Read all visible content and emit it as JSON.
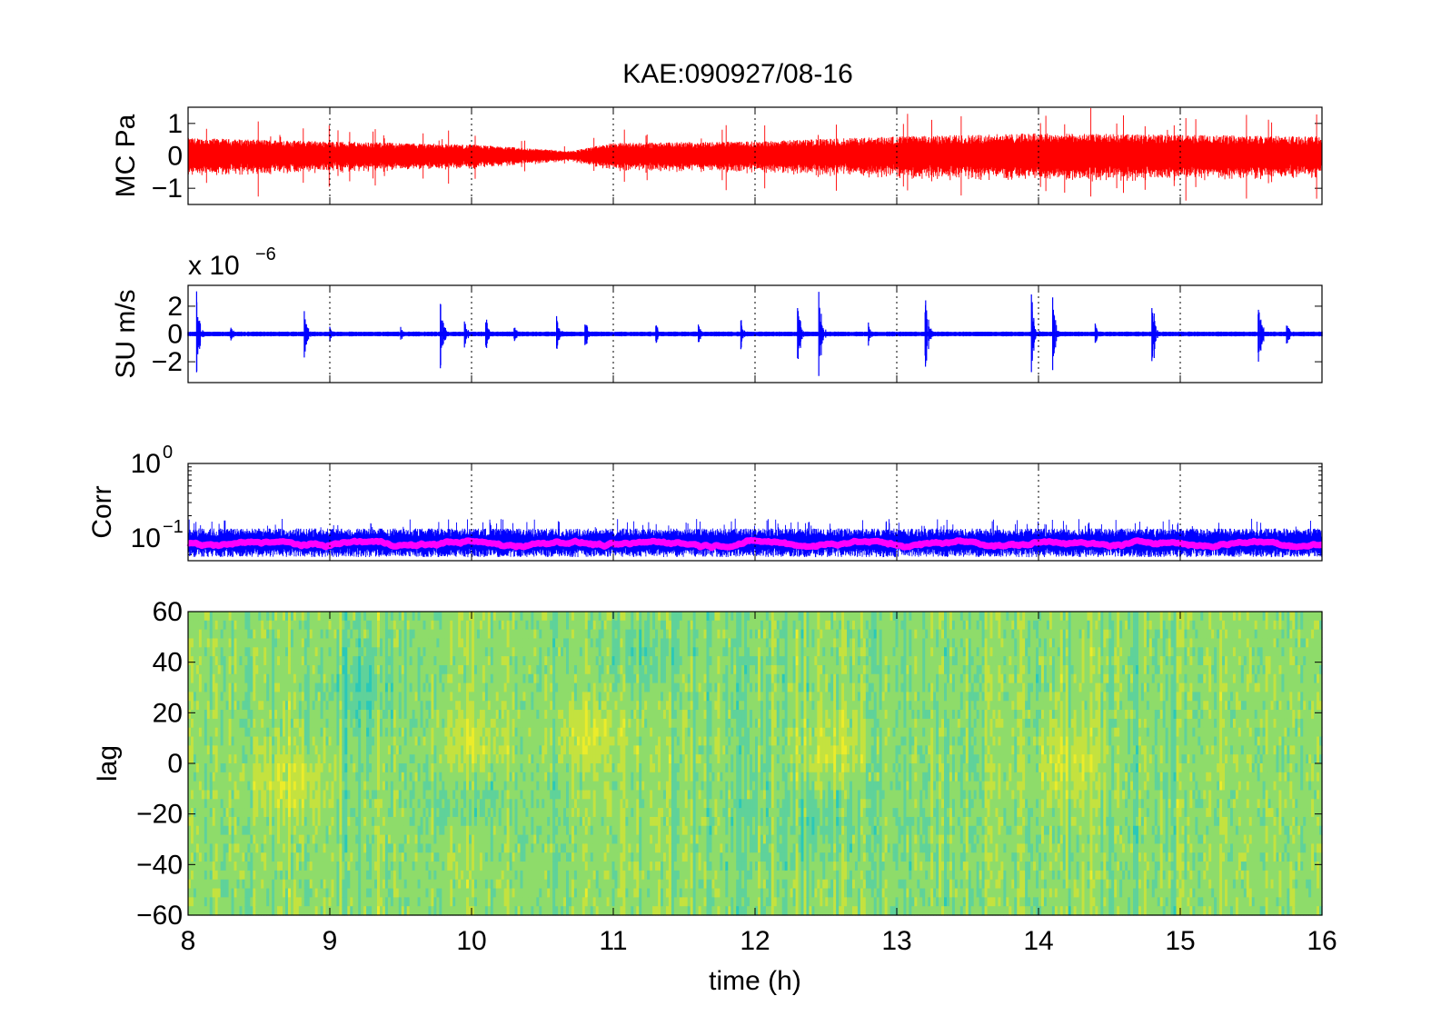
{
  "figure_title": "KAE:090927/08-16",
  "chart_data": [
    {
      "id": "mc",
      "type": "line",
      "ylabel": "MC Pa",
      "xlim": [
        8,
        16
      ],
      "ylim": [
        -1.5,
        1.5
      ],
      "yticks": [
        1,
        0,
        -1
      ],
      "yticklabels": [
        "1",
        "0",
        "−1"
      ],
      "xgrid": true,
      "series": [
        {
          "color": "#ff0000"
        }
      ],
      "envelope": {
        "x": [
          8,
          9,
          10,
          10.7,
          11,
          12,
          13,
          14,
          15,
          16
        ],
        "amp": [
          0.55,
          0.45,
          0.35,
          0.15,
          0.4,
          0.45,
          0.6,
          0.7,
          0.65,
          0.6
        ]
      }
    },
    {
      "id": "su",
      "type": "line",
      "ylabel": "SU m/s",
      "y_exponent": "x 10",
      "y_exponent_power": "−6",
      "xlim": [
        8,
        16
      ],
      "ylim": [
        -3.5,
        3.5
      ],
      "yticks": [
        2,
        0,
        -2
      ],
      "yticklabels": [
        "2",
        "0",
        "−2"
      ],
      "xgrid": true,
      "series": [
        {
          "color": "#0000ff"
        }
      ],
      "events": [
        {
          "x": 8.06,
          "amp": 3.2
        },
        {
          "x": 8.3,
          "amp": 0.8
        },
        {
          "x": 8.82,
          "amp": 2.3
        },
        {
          "x": 9.0,
          "amp": 0.7
        },
        {
          "x": 9.5,
          "amp": 0.6
        },
        {
          "x": 9.78,
          "amp": 3.0
        },
        {
          "x": 9.95,
          "amp": 1.2
        },
        {
          "x": 10.1,
          "amp": 1.5
        },
        {
          "x": 10.3,
          "amp": 0.9
        },
        {
          "x": 10.6,
          "amp": 1.5
        },
        {
          "x": 10.8,
          "amp": 1.2
        },
        {
          "x": 11.3,
          "amp": 0.9
        },
        {
          "x": 11.6,
          "amp": 0.9
        },
        {
          "x": 11.9,
          "amp": 1.2
        },
        {
          "x": 12.3,
          "amp": 2.6
        },
        {
          "x": 12.45,
          "amp": 3.4
        },
        {
          "x": 12.8,
          "amp": 0.9
        },
        {
          "x": 13.2,
          "amp": 3.4
        },
        {
          "x": 13.95,
          "amp": 3.4
        },
        {
          "x": 14.1,
          "amp": 3.0
        },
        {
          "x": 14.4,
          "amp": 0.8
        },
        {
          "x": 14.8,
          "amp": 3.4
        },
        {
          "x": 15.55,
          "amp": 3.4
        },
        {
          "x": 15.75,
          "amp": 1.2
        }
      ]
    },
    {
      "id": "corr",
      "type": "line",
      "ylabel": "Corr",
      "yscale": "log",
      "xlim": [
        8,
        16
      ],
      "ylim": [
        0.05,
        1
      ],
      "ytick_base": "10",
      "ytick_powers": [
        "0",
        "−1"
      ],
      "xgrid": true,
      "series": [
        {
          "color": "#0000ff",
          "level": 0.09
        },
        {
          "color": "#ff00ff",
          "level": 0.085
        }
      ]
    },
    {
      "id": "lag",
      "type": "heatmap",
      "ylabel": "lag",
      "xlabel": "time (h)",
      "xlim": [
        8,
        16
      ],
      "ylim": [
        -60,
        60
      ],
      "xticks": [
        8,
        9,
        10,
        11,
        12,
        13,
        14,
        15,
        16
      ],
      "xticklabels": [
        "8",
        "9",
        "10",
        "11",
        "12",
        "13",
        "14",
        "15",
        "16"
      ],
      "yticks": [
        60,
        40,
        20,
        0,
        -20,
        -40,
        -60
      ],
      "yticklabels": [
        "60",
        "40",
        "20",
        "0",
        "−20",
        "−40",
        "−60"
      ],
      "colormap": [
        "#2bc8b8",
        "#5fd29a",
        "#8edc6a",
        "#c4e23f",
        "#ecec2a"
      ]
    }
  ]
}
